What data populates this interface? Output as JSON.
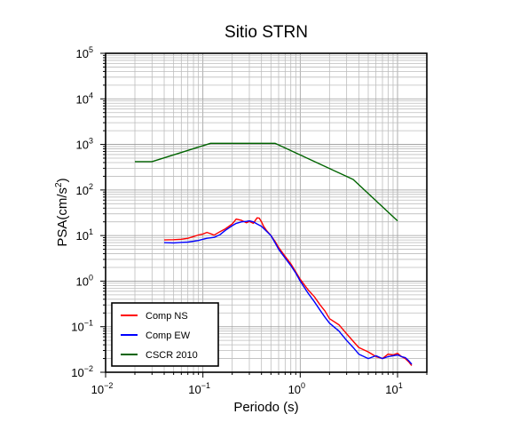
{
  "chart_data": {
    "type": "line",
    "title": "Sitio STRN",
    "xlabel": "Periodo (s)",
    "ylabel": "PSA(cm/s²)",
    "x_scale": "log",
    "y_scale": "log",
    "xlim": [
      0.01,
      20
    ],
    "ylim": [
      0.01,
      100000
    ],
    "grid": true,
    "legend_position": "bottom-left",
    "x_ticks": [
      {
        "base": "10",
        "exp": "−2"
      },
      {
        "base": "10",
        "exp": "−1"
      },
      {
        "base": "10",
        "exp": "0"
      },
      {
        "base": "10",
        "exp": "1"
      }
    ],
    "y_ticks": [
      {
        "base": "10",
        "exp": "−2"
      },
      {
        "base": "10",
        "exp": "−1"
      },
      {
        "base": "10",
        "exp": "0"
      },
      {
        "base": "10",
        "exp": "1"
      },
      {
        "base": "10",
        "exp": "2"
      },
      {
        "base": "10",
        "exp": "3"
      },
      {
        "base": "10",
        "exp": "4"
      },
      {
        "base": "10",
        "exp": "5"
      }
    ],
    "series": [
      {
        "name": "Comp NS",
        "color": "#ff0000",
        "x": [
          0.04,
          0.05,
          0.06,
          0.07,
          0.08,
          0.09,
          0.1,
          0.11,
          0.12,
          0.13,
          0.15,
          0.17,
          0.2,
          0.22,
          0.25,
          0.28,
          0.3,
          0.33,
          0.36,
          0.38,
          0.4,
          0.42,
          0.45,
          0.5,
          0.55,
          0.6,
          0.7,
          0.8,
          0.9,
          1.0,
          1.2,
          1.4,
          1.6,
          1.8,
          2.0,
          2.5,
          3.0,
          3.5,
          4.0,
          5.0,
          6.0,
          7.0,
          8.0,
          9.0,
          10.0,
          11.0,
          12.0,
          13.0,
          14.0
        ],
        "y": [
          8.0,
          8.1,
          8.3,
          8.7,
          9.5,
          10.3,
          10.8,
          11.7,
          11.0,
          10.2,
          12.2,
          14.0,
          18.0,
          23.0,
          21.5,
          19.0,
          20.5,
          18.5,
          24.5,
          24.0,
          20.0,
          16.0,
          13.0,
          10.0,
          7.5,
          5.5,
          3.5,
          2.4,
          1.6,
          1.1,
          0.65,
          0.45,
          0.3,
          0.22,
          0.15,
          0.11,
          0.07,
          0.048,
          0.035,
          0.028,
          0.022,
          0.02,
          0.025,
          0.024,
          0.026,
          0.022,
          0.02,
          0.017,
          0.014
        ]
      },
      {
        "name": "Comp EW",
        "color": "#0000ff",
        "x": [
          0.04,
          0.05,
          0.06,
          0.07,
          0.08,
          0.09,
          0.1,
          0.11,
          0.12,
          0.13,
          0.15,
          0.17,
          0.2,
          0.22,
          0.25,
          0.28,
          0.3,
          0.33,
          0.36,
          0.4,
          0.45,
          0.5,
          0.55,
          0.6,
          0.7,
          0.8,
          0.9,
          1.0,
          1.2,
          1.4,
          1.6,
          1.8,
          2.0,
          2.5,
          3.0,
          3.5,
          4.0,
          5.0,
          6.0,
          7.0,
          8.0,
          9.0,
          10.0,
          11.0,
          12.0,
          13.0,
          14.0
        ],
        "y": [
          7.0,
          6.9,
          7.1,
          7.2,
          7.5,
          7.8,
          8.3,
          8.7,
          8.9,
          9.1,
          10.5,
          13.0,
          16.5,
          18.5,
          20.0,
          20.5,
          21.0,
          20.0,
          18.0,
          16.0,
          12.5,
          10.0,
          7.0,
          5.0,
          3.2,
          2.2,
          1.5,
          1.0,
          0.55,
          0.35,
          0.23,
          0.16,
          0.12,
          0.08,
          0.05,
          0.035,
          0.025,
          0.02,
          0.023,
          0.02,
          0.022,
          0.023,
          0.024,
          0.022,
          0.021,
          0.018,
          0.015
        ]
      },
      {
        "name": "CSCR 2010",
        "color": "#006400",
        "x": [
          0.02,
          0.03,
          0.12,
          0.55,
          3.5,
          10.0
        ],
        "y": [
          420,
          420,
          1060,
          1060,
          170,
          21
        ]
      }
    ]
  }
}
